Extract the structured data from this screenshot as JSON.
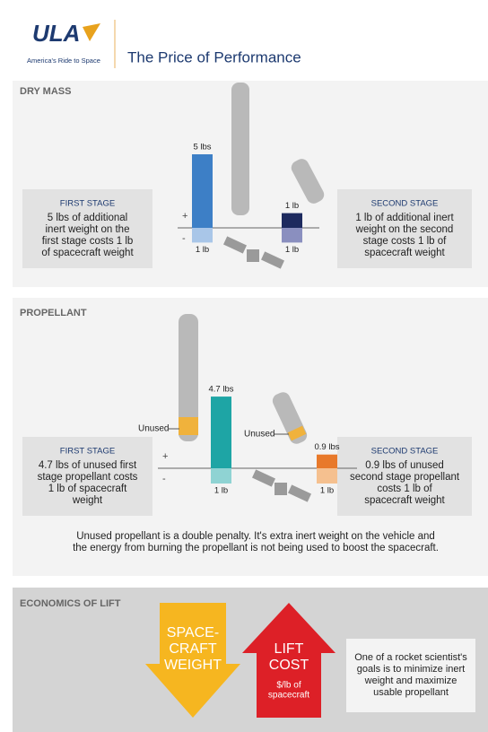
{
  "header": {
    "logo": "ULA",
    "tagline": "America's Ride to Space",
    "title": "The Price of Performance"
  },
  "dry_mass": {
    "title": "DRY MASS",
    "left": {
      "title": "FIRST STAGE",
      "lines": [
        "5 lbs of additional",
        "inert weight on the",
        "first stage costs 1 lb",
        "of spacecraft weight"
      ]
    },
    "right": {
      "title": "SECOND STAGE",
      "lines": [
        "1 lb of additional inert",
        "weight on the second",
        "stage costs 1 lb of",
        "spacecraft weight"
      ]
    },
    "plus": "+",
    "minus": "-",
    "bars": [
      {
        "values": [
          5,
          1
        ],
        "value_labels": [
          "5 lbs",
          "1 lb"
        ],
        "color": "#3d7fc6",
        "down_color": "#a9c6e8"
      },
      {
        "values": [
          1,
          1
        ],
        "value_labels": [
          "1 lb",
          "1 lb"
        ],
        "color": "#1d2a5e",
        "down_color": "#8a8fbf"
      }
    ]
  },
  "propellant": {
    "title": "PROPELLANT",
    "left": {
      "title": "FIRST STAGE",
      "lines": [
        "4.7 lbs of unused first",
        "stage propellant costs",
        "1 lb of spacecraft",
        "weight"
      ]
    },
    "right": {
      "title": "SECOND STAGE",
      "lines": [
        "0.9 lbs of unused",
        "second stage propellant",
        "costs 1 lb of",
        "spacecraft weight"
      ]
    },
    "plus": "+",
    "minus": "-",
    "unused": [
      "Unused",
      "Unused"
    ],
    "bars": [
      {
        "values": [
          4.7,
          1
        ],
        "value_labels": [
          "4.7 lbs",
          "1 lb"
        ],
        "color": "#1ea5a5",
        "down_color": "#8fd3d3"
      },
      {
        "values": [
          0.9,
          1
        ],
        "value_labels": [
          "0.9 lbs",
          "1 lb"
        ],
        "color": "#e8792a",
        "down_color": "#f5c08f"
      }
    ],
    "note": [
      "Unused propellant is a double penalty. It's extra inert weight on the vehicle and",
      "the energy from burning the propellant is not being used to boost the spacecraft."
    ]
  },
  "economics": {
    "title": "ECONOMICS OF LIFT",
    "down_arrow": [
      "SPACE-",
      "CRAFT",
      "WEIGHT"
    ],
    "up_arrow": [
      "LIFT",
      "COST"
    ],
    "up_arrow_sub": [
      "$/lb of",
      "spacecraft"
    ],
    "note": [
      "One of a rocket scientist's",
      "goals is to minimize inert",
      "weight and maximize",
      "usable propellant"
    ]
  }
}
